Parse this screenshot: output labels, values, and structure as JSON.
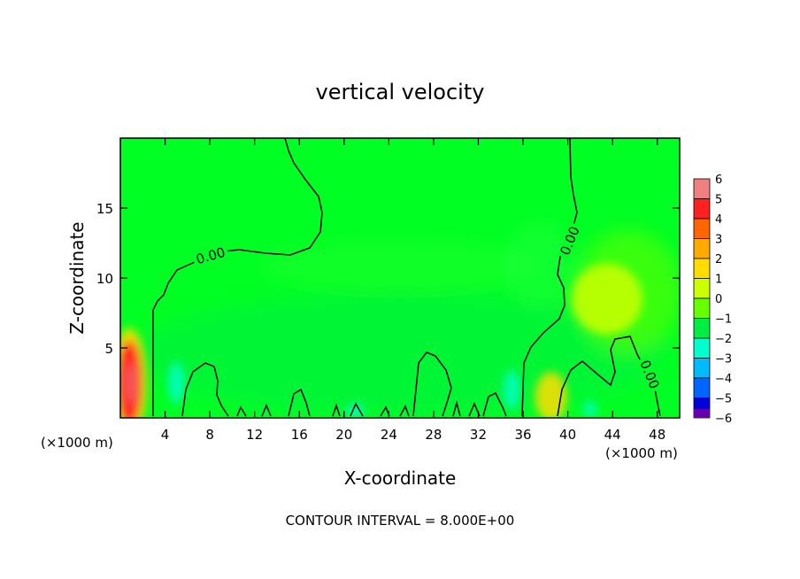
{
  "chart_data": {
    "type": "heatmap",
    "title": "vertical velocity",
    "xlabel": "X-coordinate",
    "ylabel": "Z-coordinate",
    "x_unit_left": "(×1000 m)",
    "x_unit_right": "(×1000 m)",
    "footer": "CONTOUR INTERVAL = 8.000E+00",
    "xlim": [
      0,
      50
    ],
    "ylim": [
      0,
      20
    ],
    "x_ticks": [
      4,
      8,
      12,
      16,
      20,
      24,
      28,
      32,
      36,
      40,
      44,
      48
    ],
    "x_tick_labels": [
      "4",
      "8",
      "12",
      "16",
      "20",
      "24",
      "28",
      "32",
      "36",
      "40",
      "44",
      "48"
    ],
    "y_ticks": [
      5,
      10,
      15
    ],
    "y_tick_labels": [
      "5",
      "10",
      "15"
    ],
    "contour_labels": [
      "0.00",
      "0.00",
      "0.00"
    ],
    "colorbar": {
      "levels": [
        6,
        5,
        4,
        3,
        2,
        1,
        0,
        -1,
        -2,
        -3,
        -4,
        -5,
        -6
      ],
      "labels": [
        "6",
        "5",
        "4",
        "3",
        "2",
        "1",
        "0",
        "−1",
        "−2",
        "−3",
        "−4",
        "−5",
        "−6"
      ],
      "colors": [
        "#f08080",
        "#ff2020",
        "#ff6600",
        "#ffaa00",
        "#ffdd00",
        "#ccff00",
        "#66ff00",
        "#00ee44",
        "#00ffcc",
        "#00bbff",
        "#0066ff",
        "#0000dd",
        "#6600aa"
      ]
    },
    "features": [
      {
        "kind": "updraft",
        "x": 0.8,
        "z": 2.5,
        "value": 5
      },
      {
        "kind": "updraft",
        "x": 38.5,
        "z": 1.5,
        "value": 2
      },
      {
        "kind": "updraft",
        "x": 43.5,
        "z": 8.5,
        "value": 1
      },
      {
        "kind": "downdraft",
        "x": 5,
        "z": 2.5,
        "value": -2
      },
      {
        "kind": "downdraft",
        "x": 21,
        "z": 0.5,
        "value": -2
      },
      {
        "kind": "downdraft",
        "x": 35,
        "z": 2,
        "value": -2
      },
      {
        "kind": "downdraft",
        "x": 42,
        "z": 0.6,
        "value": -2
      }
    ]
  }
}
